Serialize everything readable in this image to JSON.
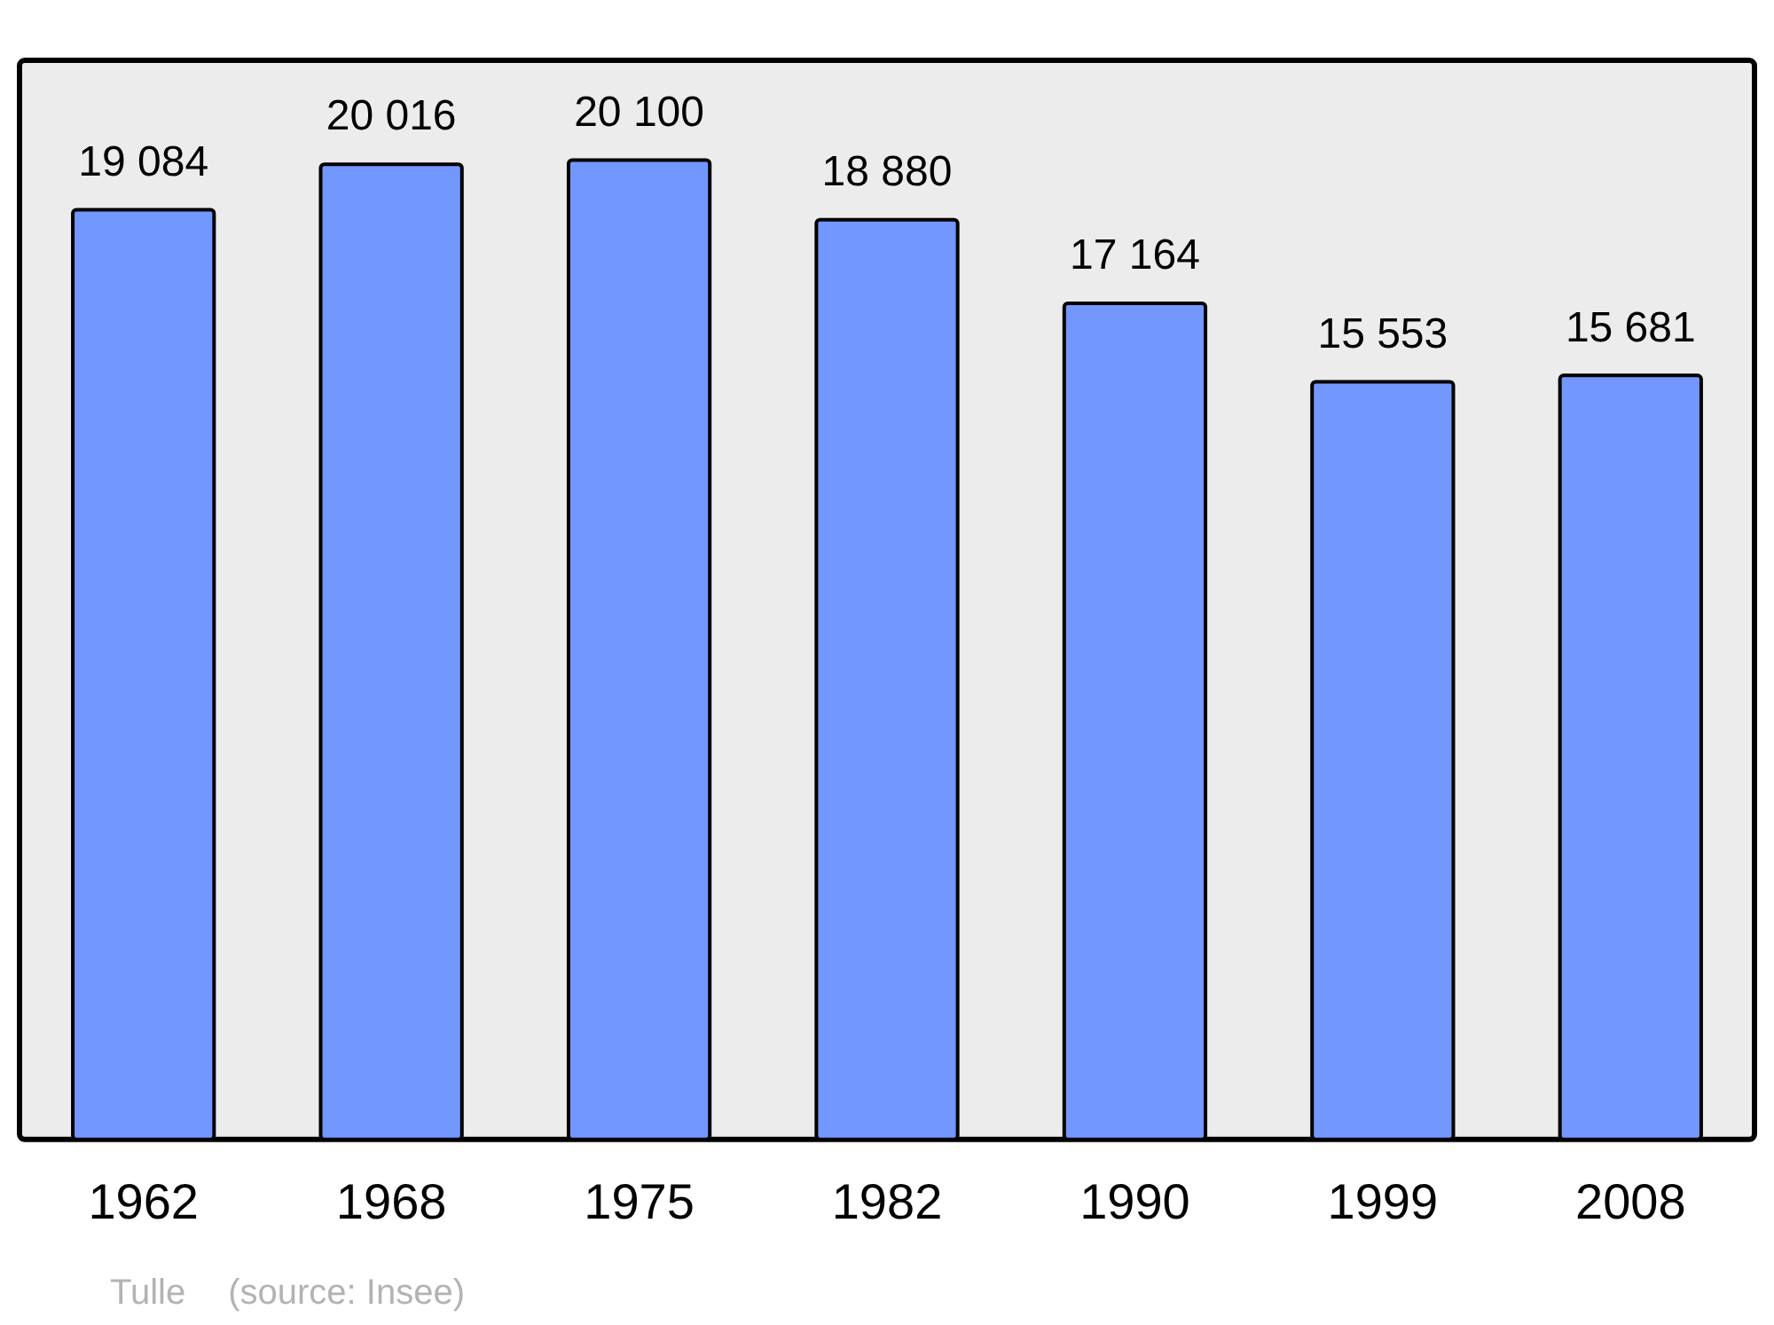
{
  "chart_data": {
    "type": "bar",
    "categories": [
      "1962",
      "1968",
      "1975",
      "1982",
      "1990",
      "1999",
      "2008"
    ],
    "values": [
      19084,
      20016,
      20100,
      18880,
      17164,
      15553,
      15681
    ],
    "value_labels": [
      "19 084",
      "20 016",
      "20 100",
      "18 880",
      "17 164",
      "15 553",
      "15 681"
    ],
    "color": "#7297ff",
    "ylim": [
      0,
      22150
    ],
    "grid": false,
    "legend": false,
    "annotations": [
      "Tulle",
      "(source: Insee)"
    ]
  }
}
